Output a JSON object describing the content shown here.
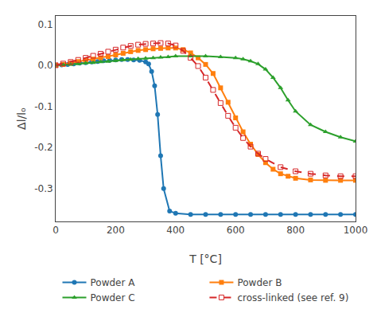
{
  "chart_data": {
    "type": "line",
    "xlabel": "T [°C]",
    "ylabel": "Δl/lₒ",
    "xlim": [
      0,
      1000
    ],
    "ylim": [
      -0.38,
      0.12
    ],
    "xticks": [
      0,
      200,
      400,
      600,
      800,
      1000
    ],
    "yticks": [
      0.1,
      {
        "value": 0.0,
        "label": "0.0"
      },
      -0.1,
      -0.2,
      -0.3
    ],
    "grid": false,
    "legend": "bottom",
    "series": [
      {
        "name": "Powder A",
        "marker": "circle",
        "line_style": "solid",
        "x": [
          0,
          20,
          40,
          60,
          80,
          100,
          120,
          140,
          160,
          180,
          200,
          220,
          240,
          260,
          280,
          300,
          310,
          320,
          330,
          340,
          350,
          360,
          380,
          400,
          450,
          500,
          550,
          600,
          650,
          700,
          750,
          800,
          850,
          900,
          950,
          1000
        ],
        "values": [
          0.0,
          0.001,
          0.002,
          0.003,
          0.005,
          0.006,
          0.008,
          0.009,
          0.011,
          0.012,
          0.013,
          0.014,
          0.014,
          0.013,
          0.012,
          0.008,
          0.003,
          -0.015,
          -0.05,
          -0.12,
          -0.22,
          -0.3,
          -0.355,
          -0.36,
          -0.363,
          -0.363,
          -0.363,
          -0.363,
          -0.363,
          -0.363,
          -0.363,
          -0.363,
          -0.363,
          -0.363,
          -0.363,
          -0.363
        ]
      },
      {
        "name": "Powder B",
        "marker": "square",
        "line_style": "solid",
        "x": [
          0,
          25,
          50,
          75,
          100,
          125,
          150,
          175,
          200,
          225,
          250,
          275,
          300,
          325,
          350,
          375,
          400,
          425,
          450,
          475,
          500,
          525,
          550,
          575,
          600,
          625,
          650,
          675,
          700,
          725,
          750,
          775,
          800,
          850,
          900,
          950,
          1000
        ],
        "values": [
          0.0,
          0.002,
          0.005,
          0.009,
          0.012,
          0.015,
          0.018,
          0.021,
          0.025,
          0.029,
          0.033,
          0.036,
          0.038,
          0.04,
          0.041,
          0.042,
          0.042,
          0.038,
          0.03,
          0.018,
          0.002,
          -0.02,
          -0.055,
          -0.09,
          -0.128,
          -0.162,
          -0.192,
          -0.217,
          -0.237,
          -0.253,
          -0.264,
          -0.27,
          -0.275,
          -0.279,
          -0.28,
          -0.28,
          -0.28
        ]
      },
      {
        "name": "Powder C",
        "marker": "triangle-up",
        "line_style": "solid",
        "x": [
          0,
          25,
          50,
          75,
          100,
          125,
          150,
          175,
          200,
          225,
          250,
          275,
          300,
          325,
          350,
          375,
          400,
          450,
          500,
          550,
          600,
          625,
          650,
          675,
          700,
          725,
          750,
          775,
          800,
          850,
          900,
          950,
          1000
        ],
        "values": [
          0.0,
          0.001,
          0.002,
          0.003,
          0.005,
          0.006,
          0.008,
          0.009,
          0.011,
          0.013,
          0.014,
          0.016,
          0.017,
          0.018,
          0.019,
          0.02,
          0.022,
          0.022,
          0.022,
          0.02,
          0.018,
          0.015,
          0.01,
          0.003,
          -0.01,
          -0.03,
          -0.055,
          -0.085,
          -0.112,
          -0.145,
          -0.162,
          -0.175,
          -0.185
        ]
      },
      {
        "name": "cross-linked (see ref. 9)",
        "marker": "square-open",
        "line_style": "dash",
        "x": [
          0,
          25,
          50,
          75,
          100,
          125,
          150,
          175,
          200,
          225,
          250,
          275,
          300,
          325,
          350,
          375,
          400,
          425,
          450,
          475,
          500,
          525,
          550,
          575,
          600,
          625,
          650,
          675,
          700,
          750,
          800,
          850,
          900,
          950,
          1000
        ],
        "values": [
          0.0,
          0.004,
          0.008,
          0.013,
          0.018,
          0.023,
          0.028,
          0.033,
          0.038,
          0.043,
          0.047,
          0.05,
          0.052,
          0.053,
          0.054,
          0.053,
          0.048,
          0.035,
          0.018,
          -0.002,
          -0.03,
          -0.06,
          -0.092,
          -0.123,
          -0.152,
          -0.177,
          -0.198,
          -0.215,
          -0.228,
          -0.248,
          -0.258,
          -0.264,
          -0.268,
          -0.27,
          -0.27
        ]
      }
    ]
  }
}
